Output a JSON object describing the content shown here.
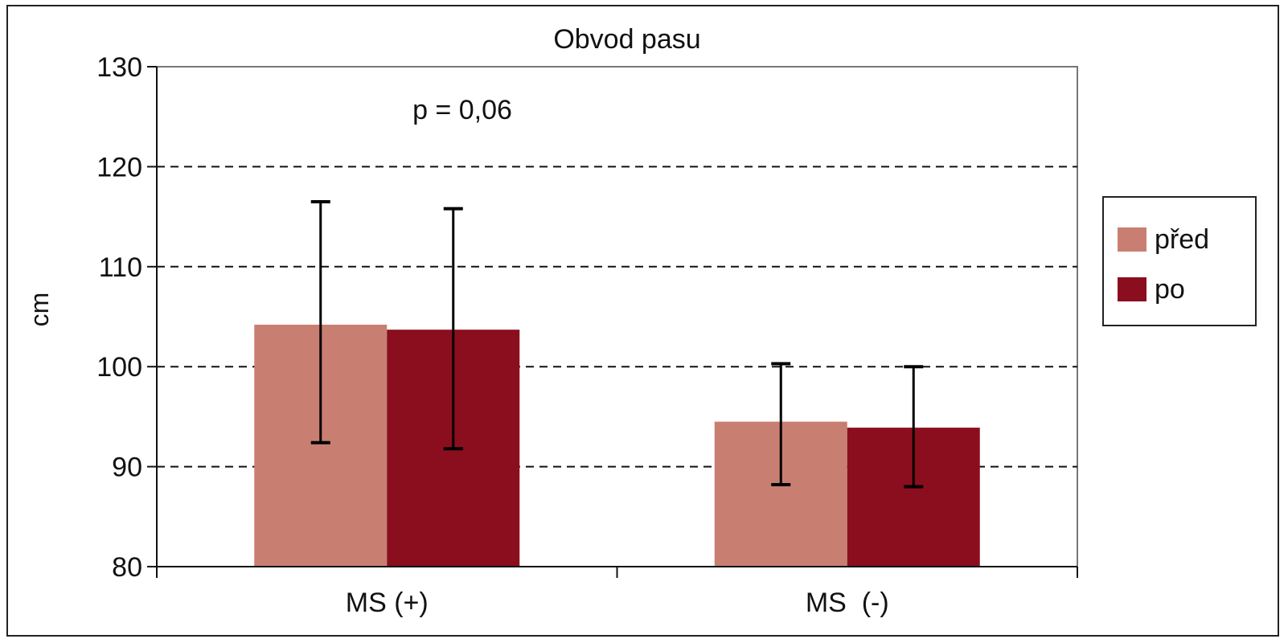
{
  "chart_data": {
    "type": "bar",
    "title": "Obvod pasu",
    "annotation": "p = 0,06",
    "xlabel": "",
    "ylabel": "cm",
    "ylim": [
      80,
      130
    ],
    "yticks": [
      80,
      90,
      100,
      110,
      120,
      130
    ],
    "grid": "horizontal dashed at 90, 100, 110, 120",
    "legend_position": "right",
    "categories": [
      "MS (+)",
      "MS  (-)"
    ],
    "series": [
      {
        "name": "před",
        "color": "#c87f72",
        "values": [
          104.2,
          94.5
        ],
        "error_low": [
          92.4,
          88.2
        ],
        "error_high": [
          116.5,
          100.3
        ]
      },
      {
        "name": "po",
        "color": "#8b0e1f",
        "values": [
          103.7,
          93.9
        ],
        "error_low": [
          91.8,
          88.0
        ],
        "error_high": [
          115.8,
          100.0
        ]
      }
    ]
  }
}
